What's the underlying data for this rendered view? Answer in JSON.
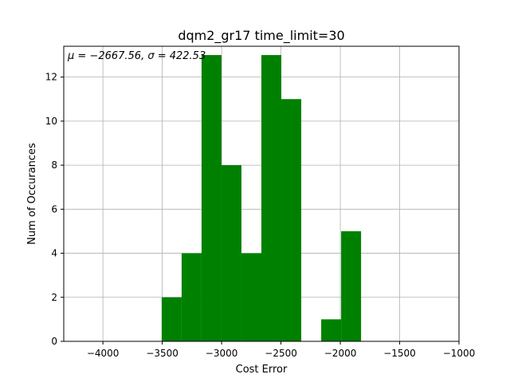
{
  "chart_data": {
    "type": "bar",
    "title": "dqm2_gr17 time_limit=30",
    "annotation": "μ = −2667.56,  σ = 422.53",
    "xlabel": "Cost Error",
    "ylabel": "Num of Occurances",
    "xlim": [
      -4330,
      -1000
    ],
    "ylim": [
      0,
      13.4
    ],
    "xticks": [
      -4000,
      -3500,
      -3000,
      -2500,
      -2000,
      -1500,
      -1000
    ],
    "xtick_labels": [
      "−4000",
      "−3500",
      "−3000",
      "−2500",
      "−2000",
      "−1500",
      "−1000"
    ],
    "yticks": [
      0,
      2,
      4,
      6,
      8,
      10,
      12
    ],
    "ytick_labels": [
      "0",
      "2",
      "4",
      "6",
      "8",
      "10",
      "12"
    ],
    "grid": true,
    "bar_color": "#008000",
    "bins": [
      {
        "x0": -3505,
        "x1": -3337,
        "value": 2
      },
      {
        "x0": -3337,
        "x1": -3169,
        "value": 4
      },
      {
        "x0": -3169,
        "x1": -3001,
        "value": 13
      },
      {
        "x0": -3001,
        "x1": -2833,
        "value": 8
      },
      {
        "x0": -2833,
        "x1": -2665,
        "value": 4
      },
      {
        "x0": -2665,
        "x1": -2497,
        "value": 13
      },
      {
        "x0": -2497,
        "x1": -2329,
        "value": 11
      },
      {
        "x0": -2329,
        "x1": -2161,
        "value": 0
      },
      {
        "x0": -2161,
        "x1": -1993,
        "value": 1
      },
      {
        "x0": -1993,
        "x1": -1825,
        "value": 5
      }
    ]
  }
}
